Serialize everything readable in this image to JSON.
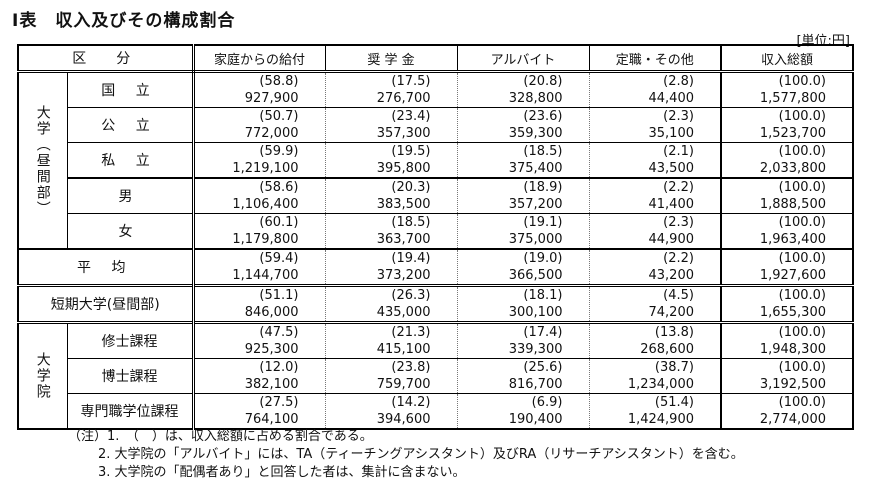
{
  "title": "I表　収入及びその構成割合",
  "unit": "[単位:円]",
  "headers": {
    "category": "区　分",
    "home": "家庭からの給付",
    "scholarship": "奨 学 金",
    "parttime": "アルバイト",
    "fulltime": "定職・その他",
    "total": "収入総額"
  },
  "groups": {
    "univ": "大学（昼間部）",
    "grad": "大学院"
  },
  "rows": [
    {
      "label": "国 立",
      "pct": [
        "(58.8)",
        "(17.5)",
        "(20.8)",
        "(2.8)",
        "(100.0)"
      ],
      "amt": [
        "927,900",
        "276,700",
        "328,800",
        "44,400",
        "1,577,800"
      ]
    },
    {
      "label": "公 立",
      "pct": [
        "(50.7)",
        "(23.4)",
        "(23.6)",
        "(2.3)",
        "(100.0)"
      ],
      "amt": [
        "772,000",
        "357,300",
        "359,300",
        "35,100",
        "1,523,700"
      ]
    },
    {
      "label": "私 立",
      "pct": [
        "(59.9)",
        "(19.5)",
        "(18.5)",
        "(2.1)",
        "(100.0)"
      ],
      "amt": [
        "1,219,100",
        "395,800",
        "375,400",
        "43,500",
        "2,033,800"
      ]
    },
    {
      "label": "男",
      "pct": [
        "(58.6)",
        "(20.3)",
        "(18.9)",
        "(2.2)",
        "(100.0)"
      ],
      "amt": [
        "1,106,400",
        "383,500",
        "357,200",
        "41,400",
        "1,888,500"
      ]
    },
    {
      "label": "女",
      "pct": [
        "(60.1)",
        "(18.5)",
        "(19.1)",
        "(2.3)",
        "(100.0)"
      ],
      "amt": [
        "1,179,800",
        "363,700",
        "375,000",
        "44,900",
        "1,963,400"
      ]
    },
    {
      "label": "平 均",
      "pct": [
        "(59.4)",
        "(19.4)",
        "(19.0)",
        "(2.2)",
        "(100.0)"
      ],
      "amt": [
        "1,144,700",
        "373,200",
        "366,500",
        "43,200",
        "1,927,600"
      ]
    },
    {
      "label": "短期大学(昼間部)",
      "pct": [
        "(51.1)",
        "(26.3)",
        "(18.1)",
        "(4.5)",
        "(100.0)"
      ],
      "amt": [
        "846,000",
        "435,000",
        "300,100",
        "74,200",
        "1,655,300"
      ]
    },
    {
      "label": "修士課程",
      "pct": [
        "(47.5)",
        "(21.3)",
        "(17.4)",
        "(13.8)",
        "(100.0)"
      ],
      "amt": [
        "925,300",
        "415,100",
        "339,300",
        "268,600",
        "1,948,300"
      ]
    },
    {
      "label": "博士課程",
      "pct": [
        "(12.0)",
        "(23.8)",
        "(25.6)",
        "(38.7)",
        "(100.0)"
      ],
      "amt": [
        "382,100",
        "759,700",
        "816,700",
        "1,234,000",
        "3,192,500"
      ]
    },
    {
      "label": "専門職学位課程",
      "pct": [
        "(27.5)",
        "(14.2)",
        "(6.9)",
        "(51.4)",
        "(100.0)"
      ],
      "amt": [
        "764,100",
        "394,600",
        "190,400",
        "1,424,900",
        "2,774,000"
      ]
    }
  ],
  "notes": [
    "（注）1.　（　）は、収入総額に占める割合である。",
    "2. 大学院の「アルバイト」には、TA（ティーチングアシスタント）及びRA（リサーチアシスタント）を含む。",
    "3. 大学院の「配偶者あり」と回答した者は、集計に含まない。"
  ]
}
